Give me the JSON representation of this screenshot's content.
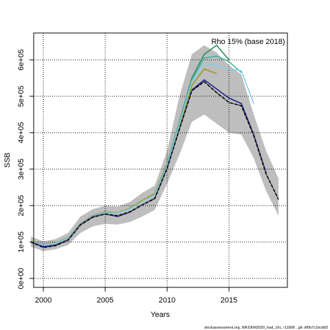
{
  "chart_data": {
    "type": "line",
    "annotation": "Rho 15% (base 2018)",
    "xlabel": "Years",
    "ylabel": "SSB",
    "footer": "stockassessment.org, WKDEM2020_had_16c, r11806 , git: df0b7c1bcb83",
    "x": [
      1999,
      2000,
      2001,
      2002,
      2003,
      2004,
      2005,
      2006,
      2007,
      2008,
      2009,
      2010,
      2011,
      2012,
      2013,
      2014,
      2015,
      2016,
      2017,
      2018,
      2019
    ],
    "xlim": [
      1999.22,
      2019.72
    ],
    "xticks": [
      2000,
      2005,
      2010,
      2015
    ],
    "ylim": [
      -24500,
      673600
    ],
    "yticks": [
      {
        "value": 0,
        "label": "0e+00"
      },
      {
        "value": 100000,
        "label": "1e+05"
      },
      {
        "value": 200000,
        "label": "2e+05"
      },
      {
        "value": 300000,
        "label": "3e+05"
      },
      {
        "value": 400000,
        "label": "4e+05"
      },
      {
        "value": 500000,
        "label": "5e+05"
      },
      {
        "value": 600000,
        "label": "6e+05"
      }
    ],
    "grid": true,
    "band": {
      "color": "#bebebe",
      "upper": [
        115000,
        102000,
        108000,
        125000,
        170000,
        190000,
        200000,
        197000,
        210000,
        235000,
        255000,
        350000,
        500000,
        615000,
        640000,
        620000,
        585000,
        560000,
        450000,
        350000,
        275000
      ],
      "lower": [
        87000,
        75000,
        80000,
        92000,
        125000,
        143000,
        150000,
        148000,
        155000,
        170000,
        188000,
        260000,
        340000,
        430000,
        450000,
        425000,
        400000,
        395000,
        330000,
        240000,
        172000
      ]
    },
    "series": [
      {
        "color": "#2e8b57",
        "values": [
          102000,
          93000,
          98000,
          111000,
          150000,
          172000,
          182000,
          180000,
          193000,
          213000,
          232000,
          315000,
          430000,
          550000,
          615000,
          640000,
          600000,
          null,
          null,
          null,
          null
        ]
      },
      {
        "color": "#3cb3a0",
        "values": [
          101000,
          92000,
          97000,
          110000,
          149000,
          171000,
          181000,
          179000,
          192000,
          212000,
          230000,
          312000,
          425000,
          545000,
          605000,
          610000,
          595000,
          565000,
          null,
          null,
          null
        ]
      },
      {
        "color": "#9a9a20",
        "values": [
          102000,
          94000,
          98000,
          111000,
          150000,
          171000,
          181000,
          180000,
          193000,
          214000,
          233000,
          313000,
          420000,
          530000,
          575000,
          562000,
          null,
          null,
          null,
          null,
          null
        ]
      },
      {
        "color": "#87ceeb",
        "values": [
          101000,
          92000,
          97000,
          110000,
          149000,
          170000,
          180000,
          179000,
          191000,
          211000,
          229000,
          310000,
          425000,
          540000,
          590000,
          585000,
          575000,
          570000,
          480000,
          null,
          null
        ]
      },
      {
        "color": "#1f1f8f",
        "values": [
          100000,
          87000,
          92000,
          106000,
          148000,
          169000,
          177000,
          170000,
          182000,
          202000,
          220000,
          303000,
          410000,
          517000,
          545000,
          520000,
          495000,
          480000,
          395000,
          290000,
          null
        ]
      },
      {
        "color": "#000000",
        "dashed": true,
        "values": [
          100000,
          85000,
          90000,
          105000,
          147000,
          168000,
          177000,
          172000,
          183000,
          202000,
          219000,
          302000,
          410000,
          515000,
          540000,
          510000,
          483000,
          474000,
          392000,
          287000,
          217000
        ]
      }
    ]
  }
}
